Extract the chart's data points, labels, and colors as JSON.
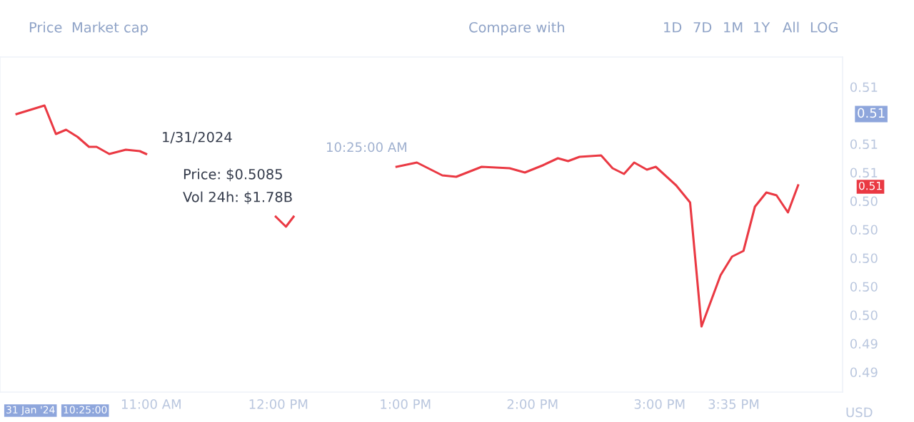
{
  "chart_data": {
    "type": "line",
    "x": [
      9.94,
      10.16,
      10.25,
      10.33,
      10.42,
      10.51,
      10.57,
      10.67,
      10.8,
      10.91,
      10.96,
      11.5,
      11.98,
      12.06,
      12.12,
      12.5,
      12.93,
      13.09,
      13.29,
      13.4,
      13.6,
      13.82,
      13.94,
      14.08,
      14.2,
      14.28,
      14.37,
      14.54,
      14.63,
      14.72,
      14.8,
      14.9,
      14.97,
      15.13,
      15.24,
      15.33,
      15.48,
      15.57,
      15.66,
      15.75,
      15.84,
      15.92,
      16.01,
      16.09
    ],
    "series": [
      {
        "color": "#ea3943",
        "values": [
          0.5101,
          0.5107,
          0.5087,
          0.509,
          0.5085,
          0.5078,
          0.5078,
          0.5073,
          0.5076,
          0.5075,
          0.5073,
          null,
          0.5029,
          0.5022,
          0.5029,
          null,
          0.5064,
          0.5067,
          0.5058,
          0.5057,
          0.5064,
          0.5063,
          0.506,
          0.5065,
          0.507,
          0.5068,
          0.5071,
          0.5072,
          0.5063,
          0.5059,
          0.5067,
          0.5062,
          0.5064,
          0.5051,
          0.5039,
          0.4952,
          0.4988,
          0.5001,
          0.5005,
          0.5036,
          0.5046,
          0.5044,
          0.5032,
          0.5051
        ]
      }
    ],
    "xlim": [
      9.81,
      16.44
    ],
    "ylim": [
      0.4906,
      0.5141
    ],
    "xticks": [
      {
        "value": 11,
        "label": "11:00 AM"
      },
      {
        "value": 12,
        "label": "12:00 PM"
      },
      {
        "value": 13,
        "label": "1:00 PM"
      },
      {
        "value": 14,
        "label": "2:00 PM"
      },
      {
        "value": 15,
        "label": "3:00 PM"
      },
      {
        "value": 15.583,
        "label": "3:35 PM"
      }
    ],
    "yticks": [
      {
        "value": 0.512,
        "label": "0.51"
      },
      {
        "value": 0.508,
        "label": "0.51"
      },
      {
        "value": 0.506,
        "label": "0.51"
      },
      {
        "value": 0.504,
        "label": "0.50"
      },
      {
        "value": 0.502,
        "label": "0.50"
      },
      {
        "value": 0.5,
        "label": "0.50"
      },
      {
        "value": 0.498,
        "label": "0.50"
      },
      {
        "value": 0.496,
        "label": "0.50"
      },
      {
        "value": 0.494,
        "label": "0.49"
      },
      {
        "value": 0.492,
        "label": "0.49"
      }
    ],
    "grid": false,
    "annotations": [
      "Price",
      "Market cap",
      "Compare with",
      "1D",
      "7D",
      "1M",
      "1Y",
      "All",
      "LOG",
      "USD",
      "1/31/2024",
      "Price: $0.5085",
      "Vol 24h: $1.78B",
      "10:25:00 AM",
      "31 Jan '24",
      "10:25:00",
      "0.51",
      "0.51"
    ]
  }
}
